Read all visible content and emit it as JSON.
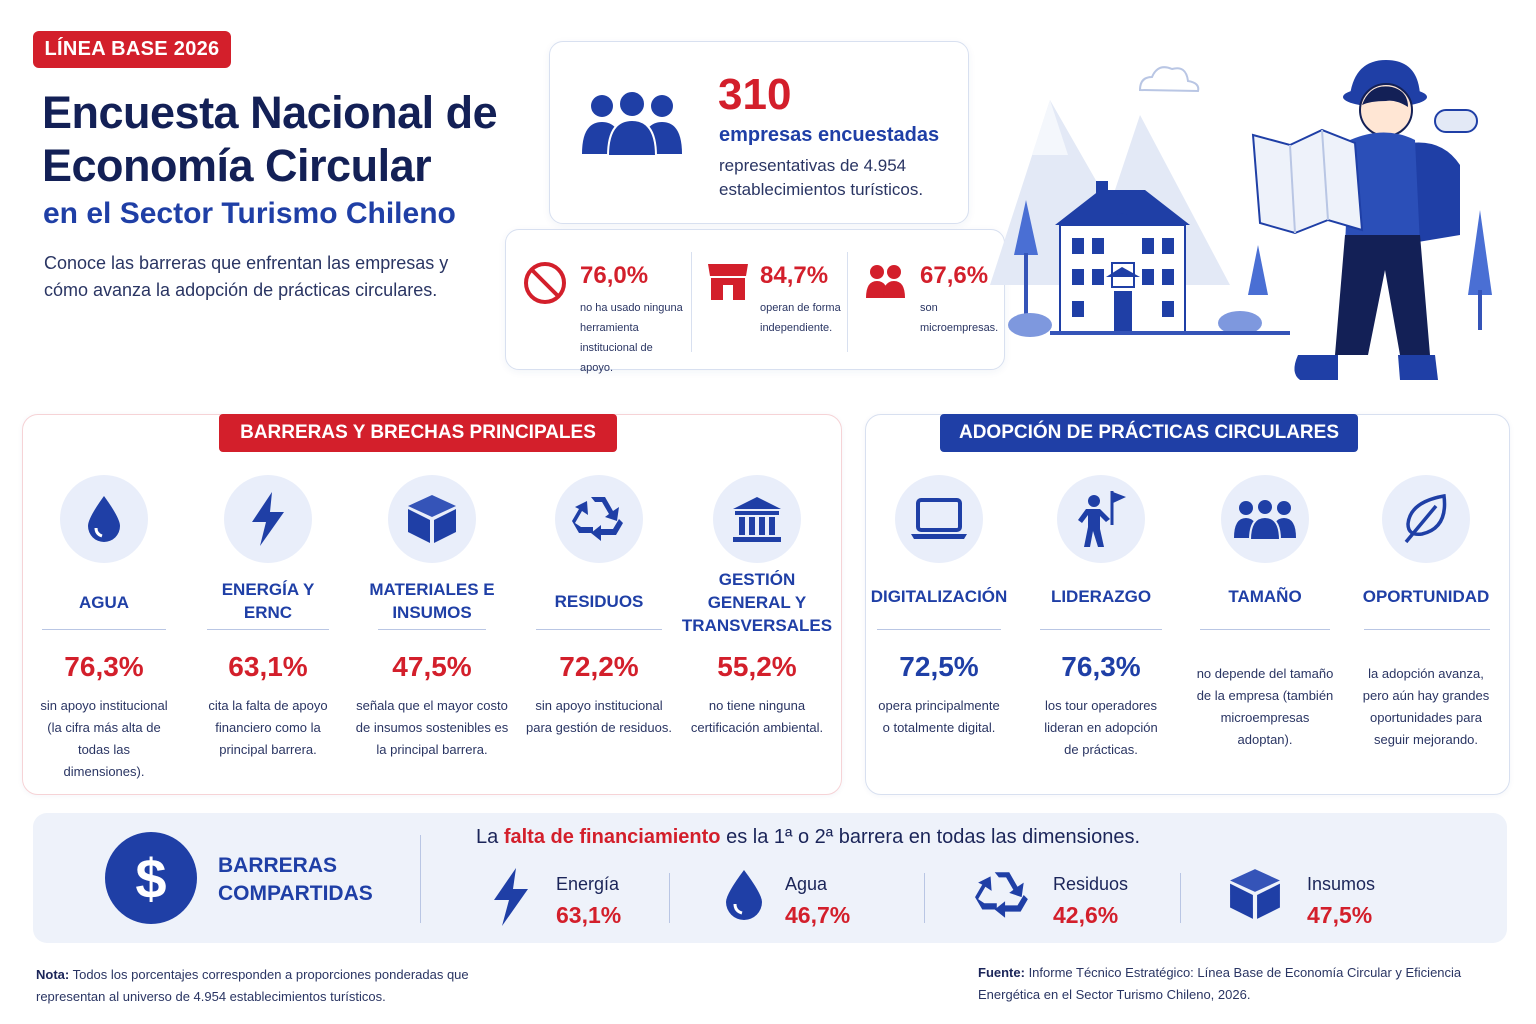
{
  "header": {
    "badge": "LÍNEA BASE 2026",
    "title": "Encuesta Nacional de Economía Circular",
    "subtitle": "en el Sector Turismo Chileno",
    "intro": "Conoce las barreras que enfrentan las empresas y cómo avanza la adopción de prácticas circulares."
  },
  "main_stat": {
    "value": "310",
    "label": "empresas encuestadas",
    "desc": "representativas de 4.954 establecimientos turísticos.",
    "icon": "people-group-icon"
  },
  "mini_stats": [
    {
      "pct": "76,0%",
      "text": "no ha usado ninguna herramienta institucional de apoyo.",
      "icon": "no-sign-icon"
    },
    {
      "pct": "84,7%",
      "text": "operan de forma independiente.",
      "icon": "store-icon"
    },
    {
      "pct": "67,6%",
      "text": "son microempresas.",
      "icon": "people-pair-icon"
    }
  ],
  "barriers": {
    "title": "BARRERAS Y BRECHAS PRINCIPALES",
    "items": [
      {
        "name": "AGUA",
        "value": "76,3%",
        "note": "sin apoyo institucional (la cifra más alta de todas las dimensiones).",
        "icon": "water-drop-icon"
      },
      {
        "name": "ENERGÍA Y ERNC",
        "value": "63,1%",
        "note": "cita la falta de apoyo financiero como la principal barrera.",
        "icon": "lightning-icon"
      },
      {
        "name": "MATERIALES E INSUMOS",
        "value": "47,5%",
        "note": "señala que el mayor costo de insumos sostenibles es la principal barrera.",
        "icon": "box-icon"
      },
      {
        "name": "RESIDUOS",
        "value": "72,2%",
        "note": "sin apoyo institucional para gestión de residuos.",
        "icon": "recycle-icon"
      },
      {
        "name": "GESTIÓN GENERAL Y TRANSVERSALES",
        "value": "55,2%",
        "note": "no tiene ninguna certificación ambiental.",
        "icon": "institution-icon"
      }
    ]
  },
  "adoption": {
    "title": "ADOPCIÓN DE PRÁCTICAS CIRCULARES",
    "items": [
      {
        "name": "DIGITALIZACIÓN",
        "value": "72,5%",
        "note": "opera principalmente o totalmente digital.",
        "icon": "laptop-icon"
      },
      {
        "name": "LIDERAZGO",
        "value": "76,3%",
        "note": "los tour operadores lideran en adopción de prácticas.",
        "icon": "flag-person-icon"
      },
      {
        "name": "TAMAÑO",
        "value": "",
        "note": "no depende del tamaño de la empresa (también microempresas adoptan).",
        "icon": "people-group-icon"
      },
      {
        "name": "OPORTUNIDAD",
        "value": "",
        "note": "la adopción avanza, pero aún hay grandes oportunidades para seguir mejorando.",
        "icon": "leaf-icon"
      }
    ]
  },
  "shared": {
    "label": "BARRERAS COMPARTIDAS",
    "dollar": "$",
    "headline_pre": "La ",
    "headline_em": "falta de financiamiento",
    "headline_post": " es la 1ª o 2ª barrera en todas las dimensiones.",
    "items": [
      {
        "name": "Energía",
        "value": "63,1%",
        "icon": "lightning-icon"
      },
      {
        "name": "Agua",
        "value": "46,7%",
        "icon": "water-drop-icon"
      },
      {
        "name": "Residuos",
        "value": "42,6%",
        "icon": "recycle-icon"
      },
      {
        "name": "Insumos",
        "value": "47,5%",
        "icon": "box-icon"
      }
    ]
  },
  "footer": {
    "note_label": "Nota:",
    "note_text": " Todos los porcentajes corresponden a proporciones ponderadas que representan al universo de 4.954 establecimientos turísticos.",
    "source_label": "Fuente:",
    "source_text": " Informe Técnico Estratégico: Línea Base de Economía Circular y Eficiencia Energética en el Sector Turismo Chileno, 2026."
  },
  "colors": {
    "red": "#d31f2b",
    "blue": "#1f3fa6",
    "navy": "#132056",
    "light": "#e9eefa"
  }
}
